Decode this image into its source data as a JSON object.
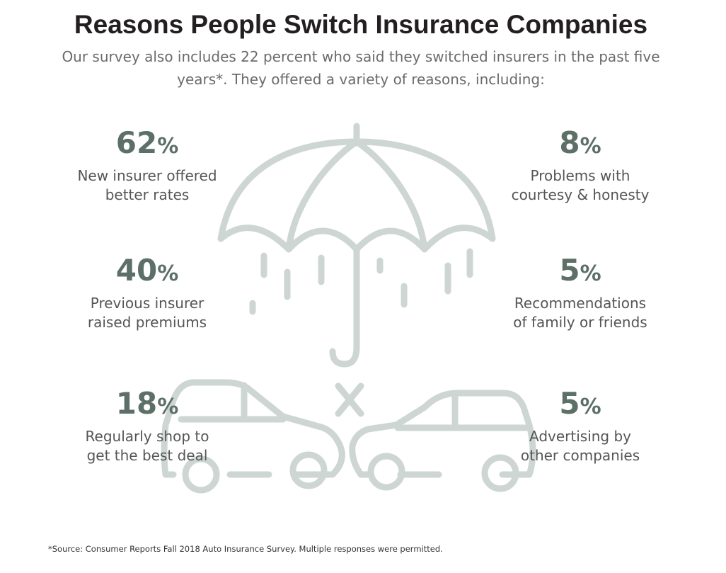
{
  "title": "Reasons People Switch Insurance Companies",
  "subtitle": "Our survey also includes 22 percent who said they switched insurers in the past five years*. They offered a variety of reasons, including:",
  "stats": [
    {
      "value": "62",
      "unit": "%",
      "line1": "New insurer offered",
      "line2": "better rates"
    },
    {
      "value": "8",
      "unit": "%",
      "line1": "Problems with",
      "line2": "courtesy & honesty"
    },
    {
      "value": "40",
      "unit": "%",
      "line1": "Previous insurer",
      "line2": "raised premiums"
    },
    {
      "value": "5",
      "unit": "%",
      "line1": "Recommendations",
      "line2": "of family or friends"
    },
    {
      "value": "18",
      "unit": "%",
      "line1": "Regularly shop to",
      "line2": "get the best deal"
    },
    {
      "value": "5",
      "unit": "%",
      "line1": "Advertising by",
      "line2": "other companies"
    }
  ],
  "source": "*Source: Consumer Reports Fall 2018 Auto Insurance Survey. Multiple responses were permitted.",
  "illustration": {
    "icons": [
      "umbrella-icon",
      "rain-icon",
      "car-crash-icon",
      "collision-x-icon"
    ],
    "line_color": "#ced6d3"
  },
  "colors": {
    "title": "#231f20",
    "percent": "#5c7068",
    "text": "#555555"
  }
}
